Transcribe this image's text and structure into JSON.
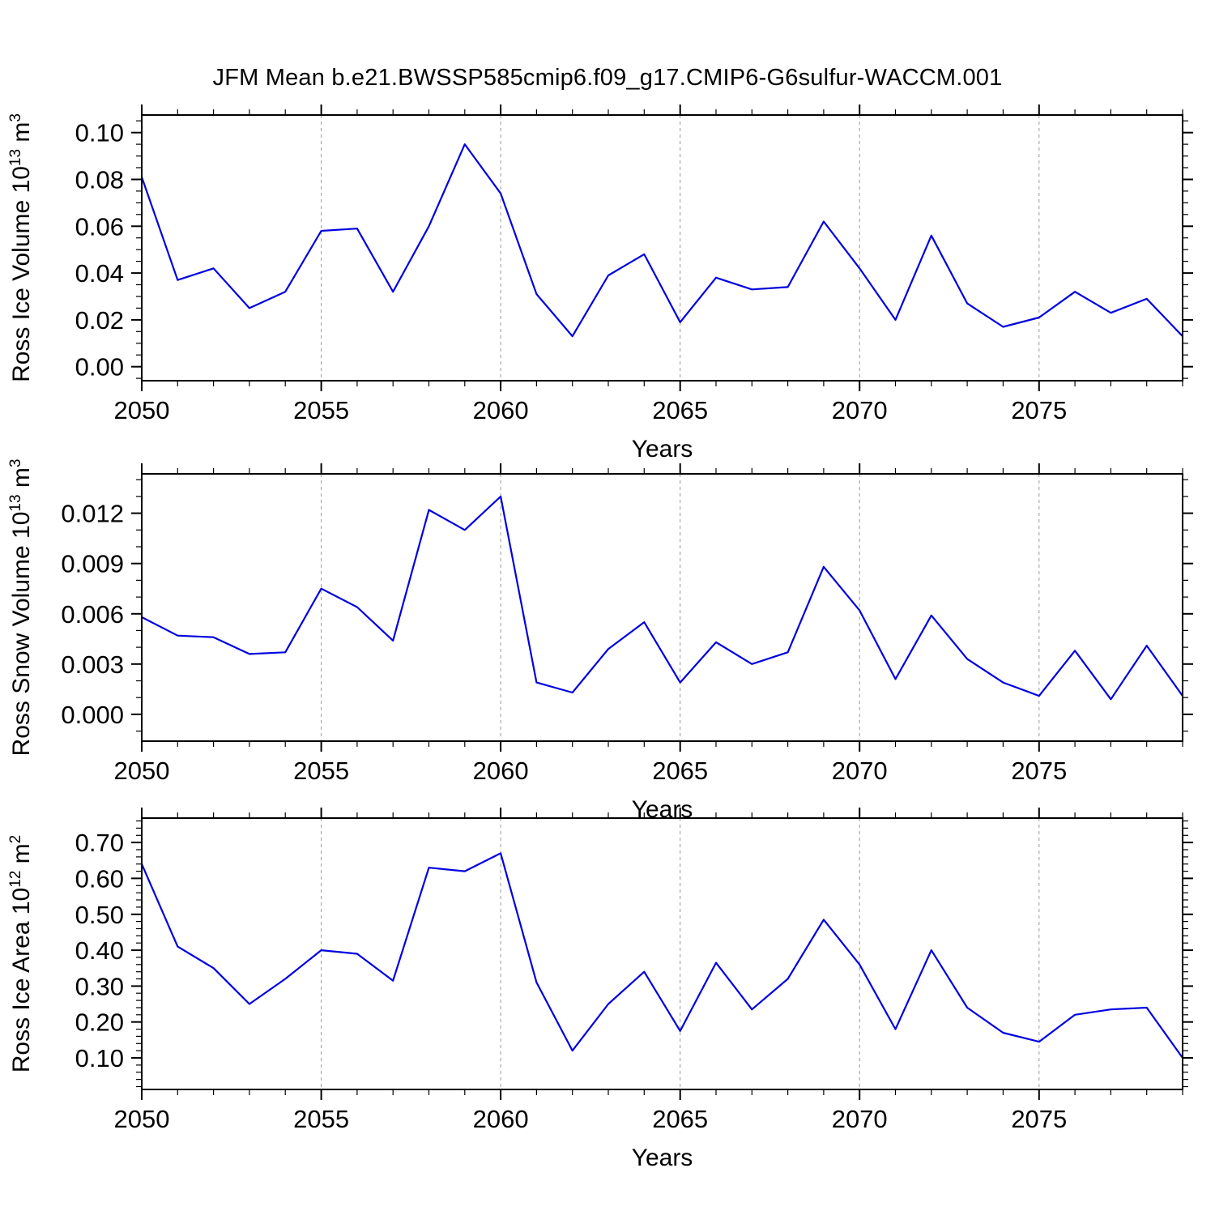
{
  "title": "JFM Mean b.e21.BWSSP585cmip6.f09_g17.CMIP6-G6sulfur-WACCM.001",
  "colors": {
    "line": "#0000e0",
    "grid": "#999999",
    "frame": "#000000"
  },
  "chart_data": [
    {
      "type": "line",
      "name": "ross-ice-volume",
      "xlabel": "Years",
      "ylabel": "Ross Ice Volume 10^13 m^3",
      "ylabel_segments": [
        {
          "text": "Ross Ice Volume 10"
        },
        {
          "text": "13",
          "sup": true
        },
        {
          "text": " m"
        },
        {
          "text": "3",
          "sup": true
        }
      ],
      "x": [
        2050,
        2051,
        2052,
        2053,
        2054,
        2055,
        2056,
        2057,
        2058,
        2059,
        2060,
        2061,
        2062,
        2063,
        2064,
        2065,
        2066,
        2067,
        2068,
        2069,
        2070,
        2071,
        2072,
        2073,
        2074,
        2075,
        2076,
        2077,
        2078,
        2079
      ],
      "values": [
        0.081,
        0.037,
        0.042,
        0.025,
        0.032,
        0.058,
        0.059,
        0.032,
        0.06,
        0.095,
        0.074,
        0.031,
        0.013,
        0.039,
        0.048,
        0.019,
        0.038,
        0.033,
        0.034,
        0.062,
        0.042,
        0.02,
        0.056,
        0.027,
        0.017,
        0.021,
        0.032,
        0.023,
        0.029,
        0.013
      ],
      "xlim": [
        2050,
        2079
      ],
      "ylim": [
        -0.006,
        0.1075
      ],
      "x_major_ticks": [
        2050,
        2055,
        2060,
        2065,
        2070,
        2075
      ],
      "x_minor_step": 1,
      "y_major_ticks": [
        0.0,
        0.02,
        0.04,
        0.06,
        0.08,
        0.1
      ],
      "y_tick_labels": [
        "0.00",
        "0.02",
        "0.04",
        "0.06",
        "0.08",
        "0.10"
      ],
      "y_minor_step": 0.005,
      "grid": true,
      "grid_x": [
        2055,
        2060,
        2065,
        2070,
        2075
      ],
      "legend": null
    },
    {
      "type": "line",
      "name": "ross-snow-volume",
      "xlabel": "Years",
      "ylabel": "Ross Snow Volume 10^13 m^3",
      "ylabel_segments": [
        {
          "text": "Ross Snow Volume 10"
        },
        {
          "text": "13",
          "sup": true
        },
        {
          "text": " m"
        },
        {
          "text": "3",
          "sup": true
        }
      ],
      "x": [
        2050,
        2051,
        2052,
        2053,
        2054,
        2055,
        2056,
        2057,
        2058,
        2059,
        2060,
        2061,
        2062,
        2063,
        2064,
        2065,
        2066,
        2067,
        2068,
        2069,
        2070,
        2071,
        2072,
        2073,
        2074,
        2075,
        2076,
        2077,
        2078,
        2079
      ],
      "values": [
        0.0058,
        0.0047,
        0.0046,
        0.0036,
        0.0037,
        0.0075,
        0.0064,
        0.0044,
        0.0122,
        0.011,
        0.013,
        0.0019,
        0.0013,
        0.0039,
        0.0055,
        0.0019,
        0.0043,
        0.003,
        0.0037,
        0.0088,
        0.0062,
        0.0021,
        0.0059,
        0.0033,
        0.0019,
        0.0011,
        0.0038,
        0.0009,
        0.0041,
        0.0011
      ],
      "xlim": [
        2050,
        2079
      ],
      "ylim": [
        -0.0016,
        0.01435
      ],
      "x_major_ticks": [
        2050,
        2055,
        2060,
        2065,
        2070,
        2075
      ],
      "x_minor_step": 1,
      "y_major_ticks": [
        0.0,
        0.003,
        0.006,
        0.009,
        0.012
      ],
      "y_tick_labels": [
        "0.000",
        "0.003",
        "0.006",
        "0.009",
        "0.012"
      ],
      "y_minor_step": 0.001,
      "grid": true,
      "grid_x": [
        2055,
        2060,
        2065,
        2070,
        2075
      ],
      "legend": null
    },
    {
      "type": "line",
      "name": "ross-ice-area",
      "xlabel": "Years",
      "ylabel": "Ross Ice Area 10^12 m^2",
      "ylabel_segments": [
        {
          "text": "Ross Ice Area 10"
        },
        {
          "text": "12",
          "sup": true
        },
        {
          "text": " m"
        },
        {
          "text": "2",
          "sup": true
        }
      ],
      "x": [
        2050,
        2051,
        2052,
        2053,
        2054,
        2055,
        2056,
        2057,
        2058,
        2059,
        2060,
        2061,
        2062,
        2063,
        2064,
        2065,
        2066,
        2067,
        2068,
        2069,
        2070,
        2071,
        2072,
        2073,
        2074,
        2075,
        2076,
        2077,
        2078,
        2079
      ],
      "values": [
        0.64,
        0.41,
        0.35,
        0.25,
        0.32,
        0.4,
        0.39,
        0.315,
        0.63,
        0.62,
        0.67,
        0.31,
        0.12,
        0.25,
        0.34,
        0.175,
        0.365,
        0.235,
        0.32,
        0.485,
        0.36,
        0.18,
        0.4,
        0.24,
        0.17,
        0.145,
        0.22,
        0.235,
        0.24,
        0.1
      ],
      "xlim": [
        2050,
        2079
      ],
      "ylim": [
        0.012,
        0.768
      ],
      "x_major_ticks": [
        2050,
        2055,
        2060,
        2065,
        2070,
        2075
      ],
      "x_minor_step": 1,
      "y_major_ticks": [
        0.1,
        0.2,
        0.3,
        0.4,
        0.5,
        0.6,
        0.7
      ],
      "y_tick_labels": [
        "0.10",
        "0.20",
        "0.30",
        "0.40",
        "0.50",
        "0.60",
        "0.70"
      ],
      "y_minor_step": 0.02,
      "grid": true,
      "grid_x": [
        2055,
        2060,
        2065,
        2070,
        2075
      ],
      "legend": null
    }
  ]
}
